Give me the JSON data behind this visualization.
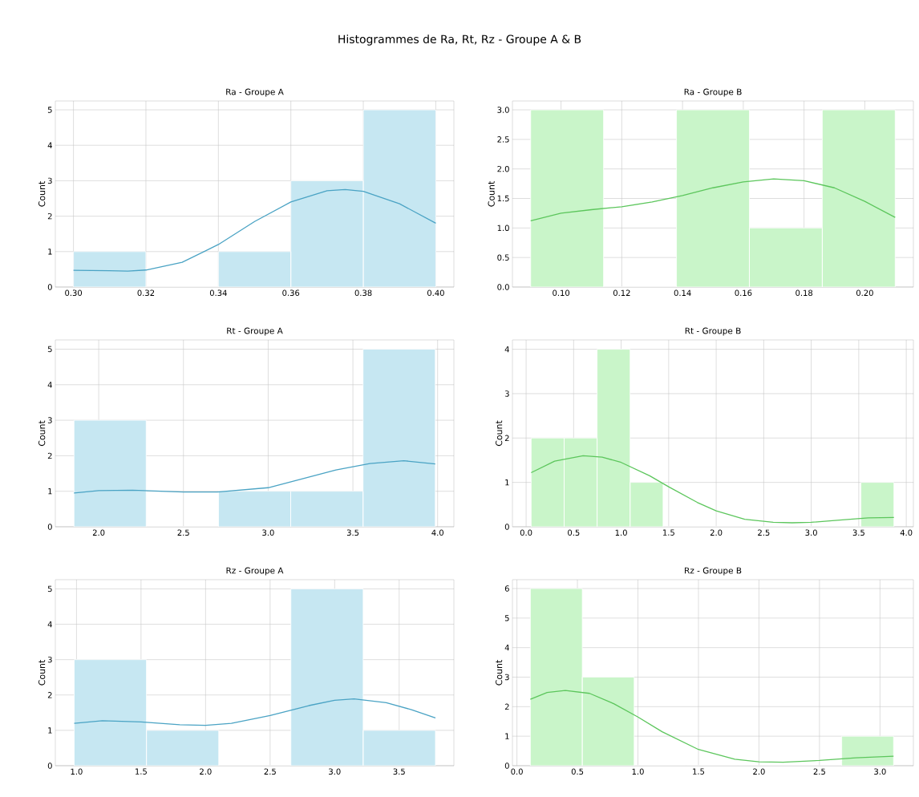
{
  "chart_data": [
    {
      "type": "histogram",
      "title": "Ra - Groupe A",
      "ylabel": "Count",
      "annotations": [
        "Histogrammes de Ra, Rt, Rz - Groupe A & B"
      ],
      "bins": [
        0.3,
        0.32,
        0.34,
        0.36,
        0.38,
        0.4
      ],
      "values": [
        1,
        0,
        1,
        3,
        5
      ],
      "color": "#c6e7f2",
      "xlim": [
        0.295,
        0.405
      ],
      "ylim": [
        0,
        5.25
      ],
      "xticks": [
        {
          "value": 0.3,
          "label": "0.30"
        },
        {
          "value": 0.32,
          "label": "0.32"
        },
        {
          "value": 0.34,
          "label": "0.34"
        },
        {
          "value": 0.36,
          "label": "0.36"
        },
        {
          "value": 0.38,
          "label": "0.38"
        },
        {
          "value": 0.4,
          "label": "0.40"
        }
      ],
      "yticks": [
        0,
        1,
        2,
        3,
        4,
        5
      ],
      "grid": true,
      "series": [
        {
          "type": "line",
          "color": "#4aa3c4",
          "x": [
            0.3,
            0.31,
            0.315,
            0.32,
            0.33,
            0.34,
            0.35,
            0.36,
            0.37,
            0.375,
            0.38,
            0.39,
            0.4
          ],
          "values": [
            0.47,
            0.46,
            0.45,
            0.48,
            0.7,
            1.2,
            1.85,
            2.4,
            2.72,
            2.75,
            2.7,
            2.35,
            1.8
          ]
        }
      ]
    },
    {
      "type": "histogram",
      "title": "Ra - Groupe B",
      "ylabel": "Count",
      "bins": [
        0.09,
        0.114,
        0.138,
        0.162,
        0.186,
        0.21
      ],
      "values": [
        3,
        0,
        3,
        1,
        3
      ],
      "color": "#c9f5c9",
      "xlim": [
        0.084,
        0.216
      ],
      "ylim": [
        0,
        3.15
      ],
      "xticks": [
        {
          "value": 0.1,
          "label": "0.10"
        },
        {
          "value": 0.12,
          "label": "0.12"
        },
        {
          "value": 0.14,
          "label": "0.14"
        },
        {
          "value": 0.16,
          "label": "0.16"
        },
        {
          "value": 0.18,
          "label": "0.18"
        },
        {
          "value": 0.2,
          "label": "0.20"
        }
      ],
      "yticks": [
        {
          "value": 0,
          "label": "0.0"
        },
        {
          "value": 0.5,
          "label": "0.5"
        },
        {
          "value": 1,
          "label": "1.0"
        },
        {
          "value": 1.5,
          "label": "1.5"
        },
        {
          "value": 2,
          "label": "2.0"
        },
        {
          "value": 2.5,
          "label": "2.5"
        },
        {
          "value": 3,
          "label": "3.0"
        }
      ],
      "grid": true,
      "series": [
        {
          "type": "line",
          "color": "#5cc65c",
          "x": [
            0.09,
            0.1,
            0.11,
            0.12,
            0.13,
            0.14,
            0.15,
            0.16,
            0.17,
            0.18,
            0.19,
            0.2,
            0.21
          ],
          "values": [
            1.12,
            1.25,
            1.31,
            1.36,
            1.44,
            1.55,
            1.68,
            1.78,
            1.83,
            1.8,
            1.68,
            1.45,
            1.18
          ]
        }
      ]
    },
    {
      "type": "histogram",
      "title": "Rt - Groupe A",
      "ylabel": "Count",
      "bins": [
        1.854,
        2.28,
        2.707,
        3.133,
        3.56,
        3.986
      ],
      "values": [
        3,
        0,
        1,
        1,
        5
      ],
      "color": "#c6e7f2",
      "xlim": [
        1.744,
        4.096
      ],
      "ylim": [
        0,
        5.26
      ],
      "xticks": [
        {
          "value": 2,
          "label": "2.0"
        },
        2.5,
        {
          "value": 3,
          "label": "3.0"
        },
        3.5,
        {
          "value": 4,
          "label": "4.0"
        }
      ],
      "yticks": [
        0,
        1,
        2,
        3,
        4,
        5
      ],
      "grid": true,
      "series": [
        {
          "type": "line",
          "color": "#4aa3c4",
          "x": [
            1.854,
            2.0,
            2.2,
            2.5,
            2.7,
            3.0,
            3.2,
            3.4,
            3.6,
            3.8,
            3.986
          ],
          "values": [
            0.95,
            1.02,
            1.03,
            0.98,
            0.98,
            1.1,
            1.35,
            1.6,
            1.78,
            1.86,
            1.77
          ]
        }
      ]
    },
    {
      "type": "histogram",
      "title": "Rt - Groupe B",
      "ylabel": "Count",
      "bins": [
        0.053,
        0.4,
        0.747,
        1.094,
        1.441,
        1.788,
        2.135,
        2.482,
        2.829,
        3.176,
        3.523,
        3.87
      ],
      "values": [
        2,
        2,
        4,
        1,
        0,
        0,
        0,
        0,
        0,
        0,
        1
      ],
      "color": "#c9f5c9",
      "xlim": [
        -0.144,
        4.075
      ],
      "ylim": [
        0,
        4.21
      ],
      "xticks": [
        {
          "value": 0,
          "label": "0.0"
        },
        0.5,
        {
          "value": 1,
          "label": "1.0"
        },
        1.5,
        {
          "value": 2,
          "label": "2.0"
        },
        2.5,
        {
          "value": 3,
          "label": "3.0"
        },
        3.5,
        {
          "value": 4,
          "label": "4.0"
        }
      ],
      "yticks": [
        0,
        1,
        2,
        3,
        4
      ],
      "grid": true,
      "series": [
        {
          "type": "line",
          "color": "#5cc65c",
          "x": [
            0.053,
            0.3,
            0.6,
            0.8,
            1.0,
            1.3,
            1.5,
            1.8,
            2.0,
            2.3,
            2.6,
            2.8,
            3.0,
            3.3,
            3.6,
            3.87
          ],
          "values": [
            1.22,
            1.48,
            1.6,
            1.57,
            1.45,
            1.15,
            0.9,
            0.55,
            0.36,
            0.17,
            0.1,
            0.09,
            0.1,
            0.15,
            0.2,
            0.21
          ]
        }
      ]
    },
    {
      "type": "histogram",
      "title": "Rz - Groupe A",
      "ylabel": "Count",
      "bins": [
        0.982,
        1.542,
        2.102,
        2.661,
        3.221,
        3.781
      ],
      "values": [
        3,
        1,
        0,
        5,
        1
      ],
      "color": "#c6e7f2",
      "xlim": [
        0.836,
        3.924
      ],
      "ylim": [
        0,
        5.26
      ],
      "xticks": [
        {
          "value": 1,
          "label": "1.0"
        },
        1.5,
        {
          "value": 2,
          "label": "2.0"
        },
        2.5,
        {
          "value": 3,
          "label": "3.0"
        },
        3.5
      ],
      "yticks": [
        0,
        1,
        2,
        3,
        4,
        5
      ],
      "grid": true,
      "series": [
        {
          "type": "line",
          "color": "#4aa3c4",
          "x": [
            0.982,
            1.2,
            1.5,
            1.8,
            2.0,
            2.2,
            2.5,
            2.8,
            3.0,
            3.15,
            3.4,
            3.6,
            3.781
          ],
          "values": [
            1.2,
            1.27,
            1.24,
            1.16,
            1.14,
            1.2,
            1.42,
            1.7,
            1.85,
            1.89,
            1.78,
            1.58,
            1.35
          ]
        }
      ]
    },
    {
      "type": "histogram",
      "title": "Rz - Groupe B",
      "ylabel": "Count",
      "bins": [
        0.111,
        0.54,
        0.969,
        1.397,
        1.826,
        2.255,
        2.684,
        3.112
      ],
      "values": [
        6,
        3,
        0,
        0,
        0,
        0,
        1
      ],
      "color": "#c9f5c9",
      "xlim": [
        -0.037,
        3.276
      ],
      "ylim": [
        0,
        6.3
      ],
      "xticks": [
        {
          "value": 0,
          "label": "0.0"
        },
        0.5,
        {
          "value": 1,
          "label": "1.0"
        },
        1.5,
        {
          "value": 2,
          "label": "2.0"
        },
        2.5,
        {
          "value": 3,
          "label": "3.0"
        }
      ],
      "yticks": [
        0,
        1,
        2,
        3,
        4,
        5,
        6
      ],
      "grid": true,
      "series": [
        {
          "type": "line",
          "color": "#5cc65c",
          "x": [
            0.111,
            0.25,
            0.4,
            0.6,
            0.8,
            1.0,
            1.2,
            1.5,
            1.8,
            2.0,
            2.2,
            2.5,
            2.8,
            3.112
          ],
          "values": [
            2.25,
            2.48,
            2.55,
            2.45,
            2.1,
            1.65,
            1.15,
            0.55,
            0.22,
            0.13,
            0.12,
            0.18,
            0.27,
            0.32
          ]
        }
      ]
    }
  ]
}
